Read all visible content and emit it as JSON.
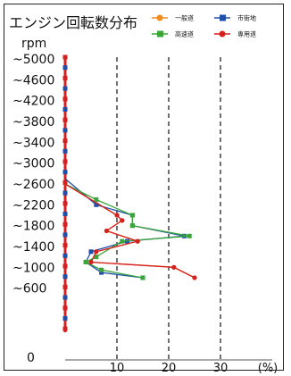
{
  "chart_data": {
    "type": "line",
    "title": "エンジン回転数分布",
    "unit_label": "rpm",
    "categories": [
      "~5000",
      "~4600",
      "~4200",
      "~3800",
      "~3400",
      "~3000",
      "~2600",
      "~2200",
      "~1800",
      "~1400",
      "~1000",
      "~600",
      "0"
    ],
    "x_axis": {
      "ticks": [
        "10",
        "20",
        "30",
        "(%)"
      ],
      "xlim": [
        0,
        40
      ]
    },
    "series": [
      {
        "name": "一般道",
        "color": "#f08c1e",
        "points": [
          [
            0,
            2600
          ],
          [
            10,
            2000
          ],
          [
            11,
            1900
          ],
          [
            8,
            1700
          ],
          [
            14,
            1500
          ],
          [
            6,
            1300
          ],
          [
            5,
            1100
          ],
          [
            21,
            1000
          ],
          [
            25,
            800
          ]
        ]
      },
      {
        "name": "市街地",
        "color": "#1f4fa8",
        "points": [
          [
            0,
            2700
          ],
          [
            6,
            2200
          ],
          [
            13,
            2000
          ],
          [
            13,
            1800
          ],
          [
            23,
            1600
          ],
          [
            12,
            1500
          ],
          [
            5,
            1300
          ],
          [
            4,
            1100
          ],
          [
            7,
            900
          ],
          [
            15,
            800
          ]
        ]
      },
      {
        "name": "高速道",
        "color": "#3aa63a",
        "points": [
          [
            0,
            2600
          ],
          [
            6,
            2300
          ],
          [
            13,
            2000
          ],
          [
            13,
            1800
          ],
          [
            24,
            1600
          ],
          [
            11,
            1500
          ],
          [
            6,
            1200
          ],
          [
            4,
            1100
          ],
          [
            7,
            950
          ],
          [
            15,
            800
          ]
        ]
      },
      {
        "name": "専用道",
        "color": "#d61f1f",
        "points": [
          [
            0,
            2600
          ],
          [
            10,
            2000
          ],
          [
            11,
            1900
          ],
          [
            8,
            1700
          ],
          [
            14,
            1500
          ],
          [
            6,
            1300
          ],
          [
            5,
            1100
          ],
          [
            21,
            1000
          ],
          [
            25,
            800
          ]
        ]
      }
    ]
  }
}
